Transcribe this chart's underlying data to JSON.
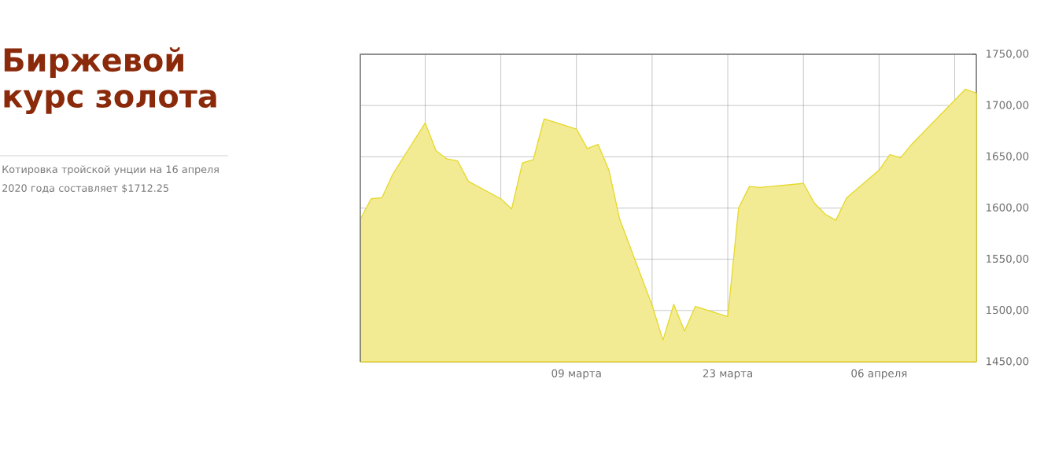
{
  "chart_data": {
    "type": "area",
    "title": "Биржевой курс золота",
    "subtitle": "Котировка тройской унции на 16 апреля 2020 года составляет $1712.25",
    "x": [
      "2020-02-18",
      "2020-02-19",
      "2020-02-20",
      "2020-02-21",
      "2020-02-24",
      "2020-02-25",
      "2020-02-26",
      "2020-02-27",
      "2020-02-28",
      "2020-03-02",
      "2020-03-03",
      "2020-03-04",
      "2020-03-05",
      "2020-03-06",
      "2020-03-09",
      "2020-03-10",
      "2020-03-11",
      "2020-03-12",
      "2020-03-13",
      "2020-03-16",
      "2020-03-17",
      "2020-03-18",
      "2020-03-19",
      "2020-03-20",
      "2020-03-23",
      "2020-03-24",
      "2020-03-25",
      "2020-03-26",
      "2020-03-30",
      "2020-03-31",
      "2020-04-01",
      "2020-04-02",
      "2020-04-03",
      "2020-04-06",
      "2020-04-07",
      "2020-04-08",
      "2020-04-09",
      "2020-04-14",
      "2020-04-15"
    ],
    "series": [
      {
        "color": "#e6d82a",
        "values": [
          1589,
          1609,
          1610,
          1633,
          1683,
          1656,
          1648,
          1646,
          1626,
          1609,
          1599,
          1644,
          1647,
          1687,
          1677,
          1658,
          1662,
          1637,
          1589,
          1505,
          1471,
          1506,
          1480,
          1504,
          1494,
          1600,
          1621,
          1620,
          1624,
          1605,
          1594,
          1588,
          1610,
          1637,
          1652,
          1649,
          1662,
          1716,
          1712
        ]
      }
    ],
    "xlim": [
      "2020-02-18",
      "2020-04-15"
    ],
    "xticks": [
      {
        "value": "2020-02-24",
        "label": null
      },
      {
        "value": "2020-03-02",
        "label": null
      },
      {
        "value": "2020-03-09",
        "label": "09 марта"
      },
      {
        "value": "2020-03-16",
        "label": null
      },
      {
        "value": "2020-03-23",
        "label": "23 марта"
      },
      {
        "value": "2020-03-30",
        "label": null
      },
      {
        "value": "2020-04-06",
        "label": "06 апреля"
      },
      {
        "value": "2020-04-13",
        "label": null
      }
    ],
    "ylim": [
      1450,
      1750
    ],
    "yticks": [
      {
        "value": 1450,
        "label": "1450,00"
      },
      {
        "value": 1500,
        "label": "1500,00"
      },
      {
        "value": 1550,
        "label": "1550,00"
      },
      {
        "value": 1600,
        "label": "1600,00"
      },
      {
        "value": 1650,
        "label": "1650,00"
      },
      {
        "value": 1700,
        "label": "1700,00"
      },
      {
        "value": 1750,
        "label": "1750,00"
      }
    ],
    "grid": true
  }
}
